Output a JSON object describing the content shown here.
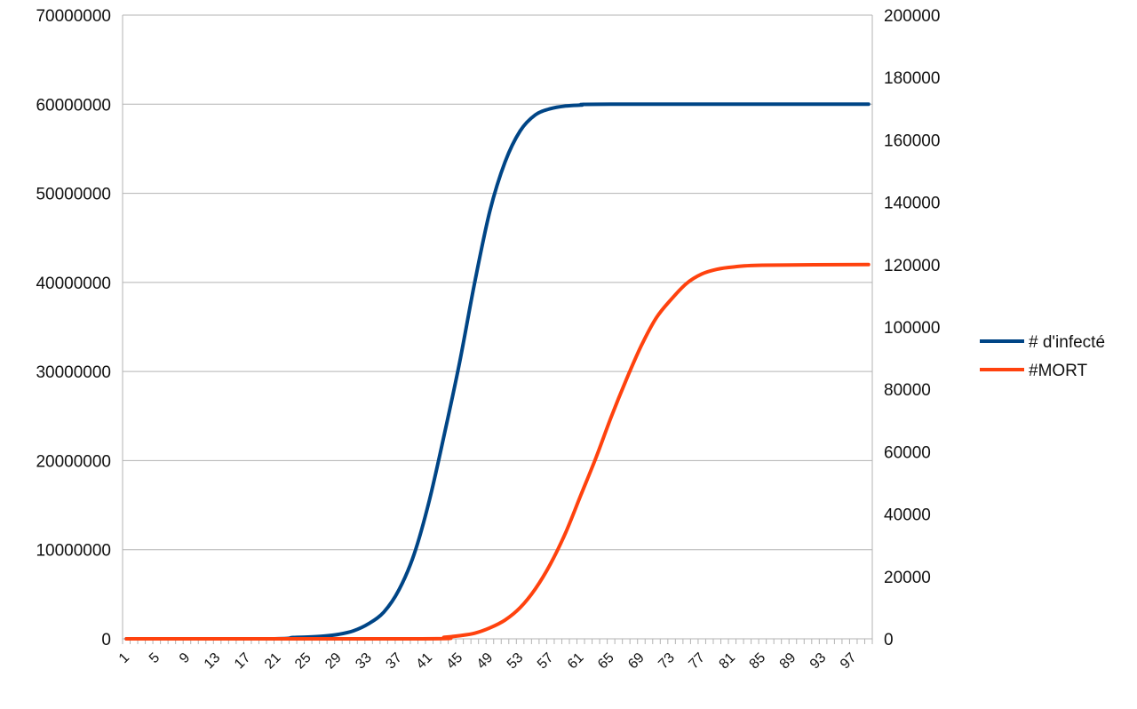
{
  "chart_data": {
    "type": "line",
    "title": "",
    "xlabel": "",
    "ylabel_left": "",
    "ylabel_right": "",
    "x": {
      "start": 1,
      "end": 99,
      "step": 1
    },
    "x_tick_labels": [
      "1",
      "5",
      "9",
      "13",
      "17",
      "21",
      "25",
      "29",
      "33",
      "37",
      "41",
      "45",
      "49",
      "53",
      "57",
      "61",
      "65",
      "69",
      "73",
      "77",
      "81",
      "85",
      "89",
      "93",
      "97"
    ],
    "y_left": {
      "min": 0,
      "max": 70000000,
      "step": 10000000,
      "tick_labels": [
        "0",
        "10000000",
        "20000000",
        "30000000",
        "40000000",
        "50000000",
        "60000000",
        "70000000"
      ]
    },
    "y_right": {
      "min": 0,
      "max": 200000,
      "step": 20000,
      "tick_labels": [
        "0",
        "20000",
        "40000",
        "60000",
        "80000",
        "100000",
        "120000",
        "140000",
        "160000",
        "180000",
        "200000"
      ]
    },
    "grid": true,
    "legend": "right",
    "series": [
      {
        "name": "# d'infecté",
        "axis": "left",
        "color": "#004586",
        "points": [
          [
            1,
            0
          ],
          [
            20,
            0
          ],
          [
            23,
            150000
          ],
          [
            25,
            200000
          ],
          [
            27,
            300000
          ],
          [
            29,
            500000
          ],
          [
            31,
            900000
          ],
          [
            33,
            1700000
          ],
          [
            35,
            3000000
          ],
          [
            37,
            5500000
          ],
          [
            39,
            9500000
          ],
          [
            41,
            15500000
          ],
          [
            43,
            23000000
          ],
          [
            45,
            31000000
          ],
          [
            47,
            40000000
          ],
          [
            49,
            48000000
          ],
          [
            51,
            53500000
          ],
          [
            53,
            57000000
          ],
          [
            55,
            58800000
          ],
          [
            57,
            59500000
          ],
          [
            59,
            59800000
          ],
          [
            61,
            59900000
          ],
          [
            65,
            60000000
          ],
          [
            99,
            60000000
          ]
        ]
      },
      {
        "name": "#MORT",
        "axis": "right",
        "color": "#ff420e",
        "points": [
          [
            1,
            0
          ],
          [
            40,
            0
          ],
          [
            43,
            500
          ],
          [
            45,
            1000
          ],
          [
            47,
            1800
          ],
          [
            49,
            3500
          ],
          [
            51,
            6000
          ],
          [
            53,
            10000
          ],
          [
            55,
            16000
          ],
          [
            57,
            24000
          ],
          [
            59,
            34000
          ],
          [
            61,
            46000
          ],
          [
            63,
            58000
          ],
          [
            65,
            71000
          ],
          [
            67,
            83000
          ],
          [
            69,
            94000
          ],
          [
            71,
            103000
          ],
          [
            73,
            109000
          ],
          [
            75,
            114000
          ],
          [
            77,
            117000
          ],
          [
            79,
            118500
          ],
          [
            81,
            119200
          ],
          [
            85,
            119800
          ],
          [
            99,
            120000
          ]
        ]
      }
    ]
  }
}
